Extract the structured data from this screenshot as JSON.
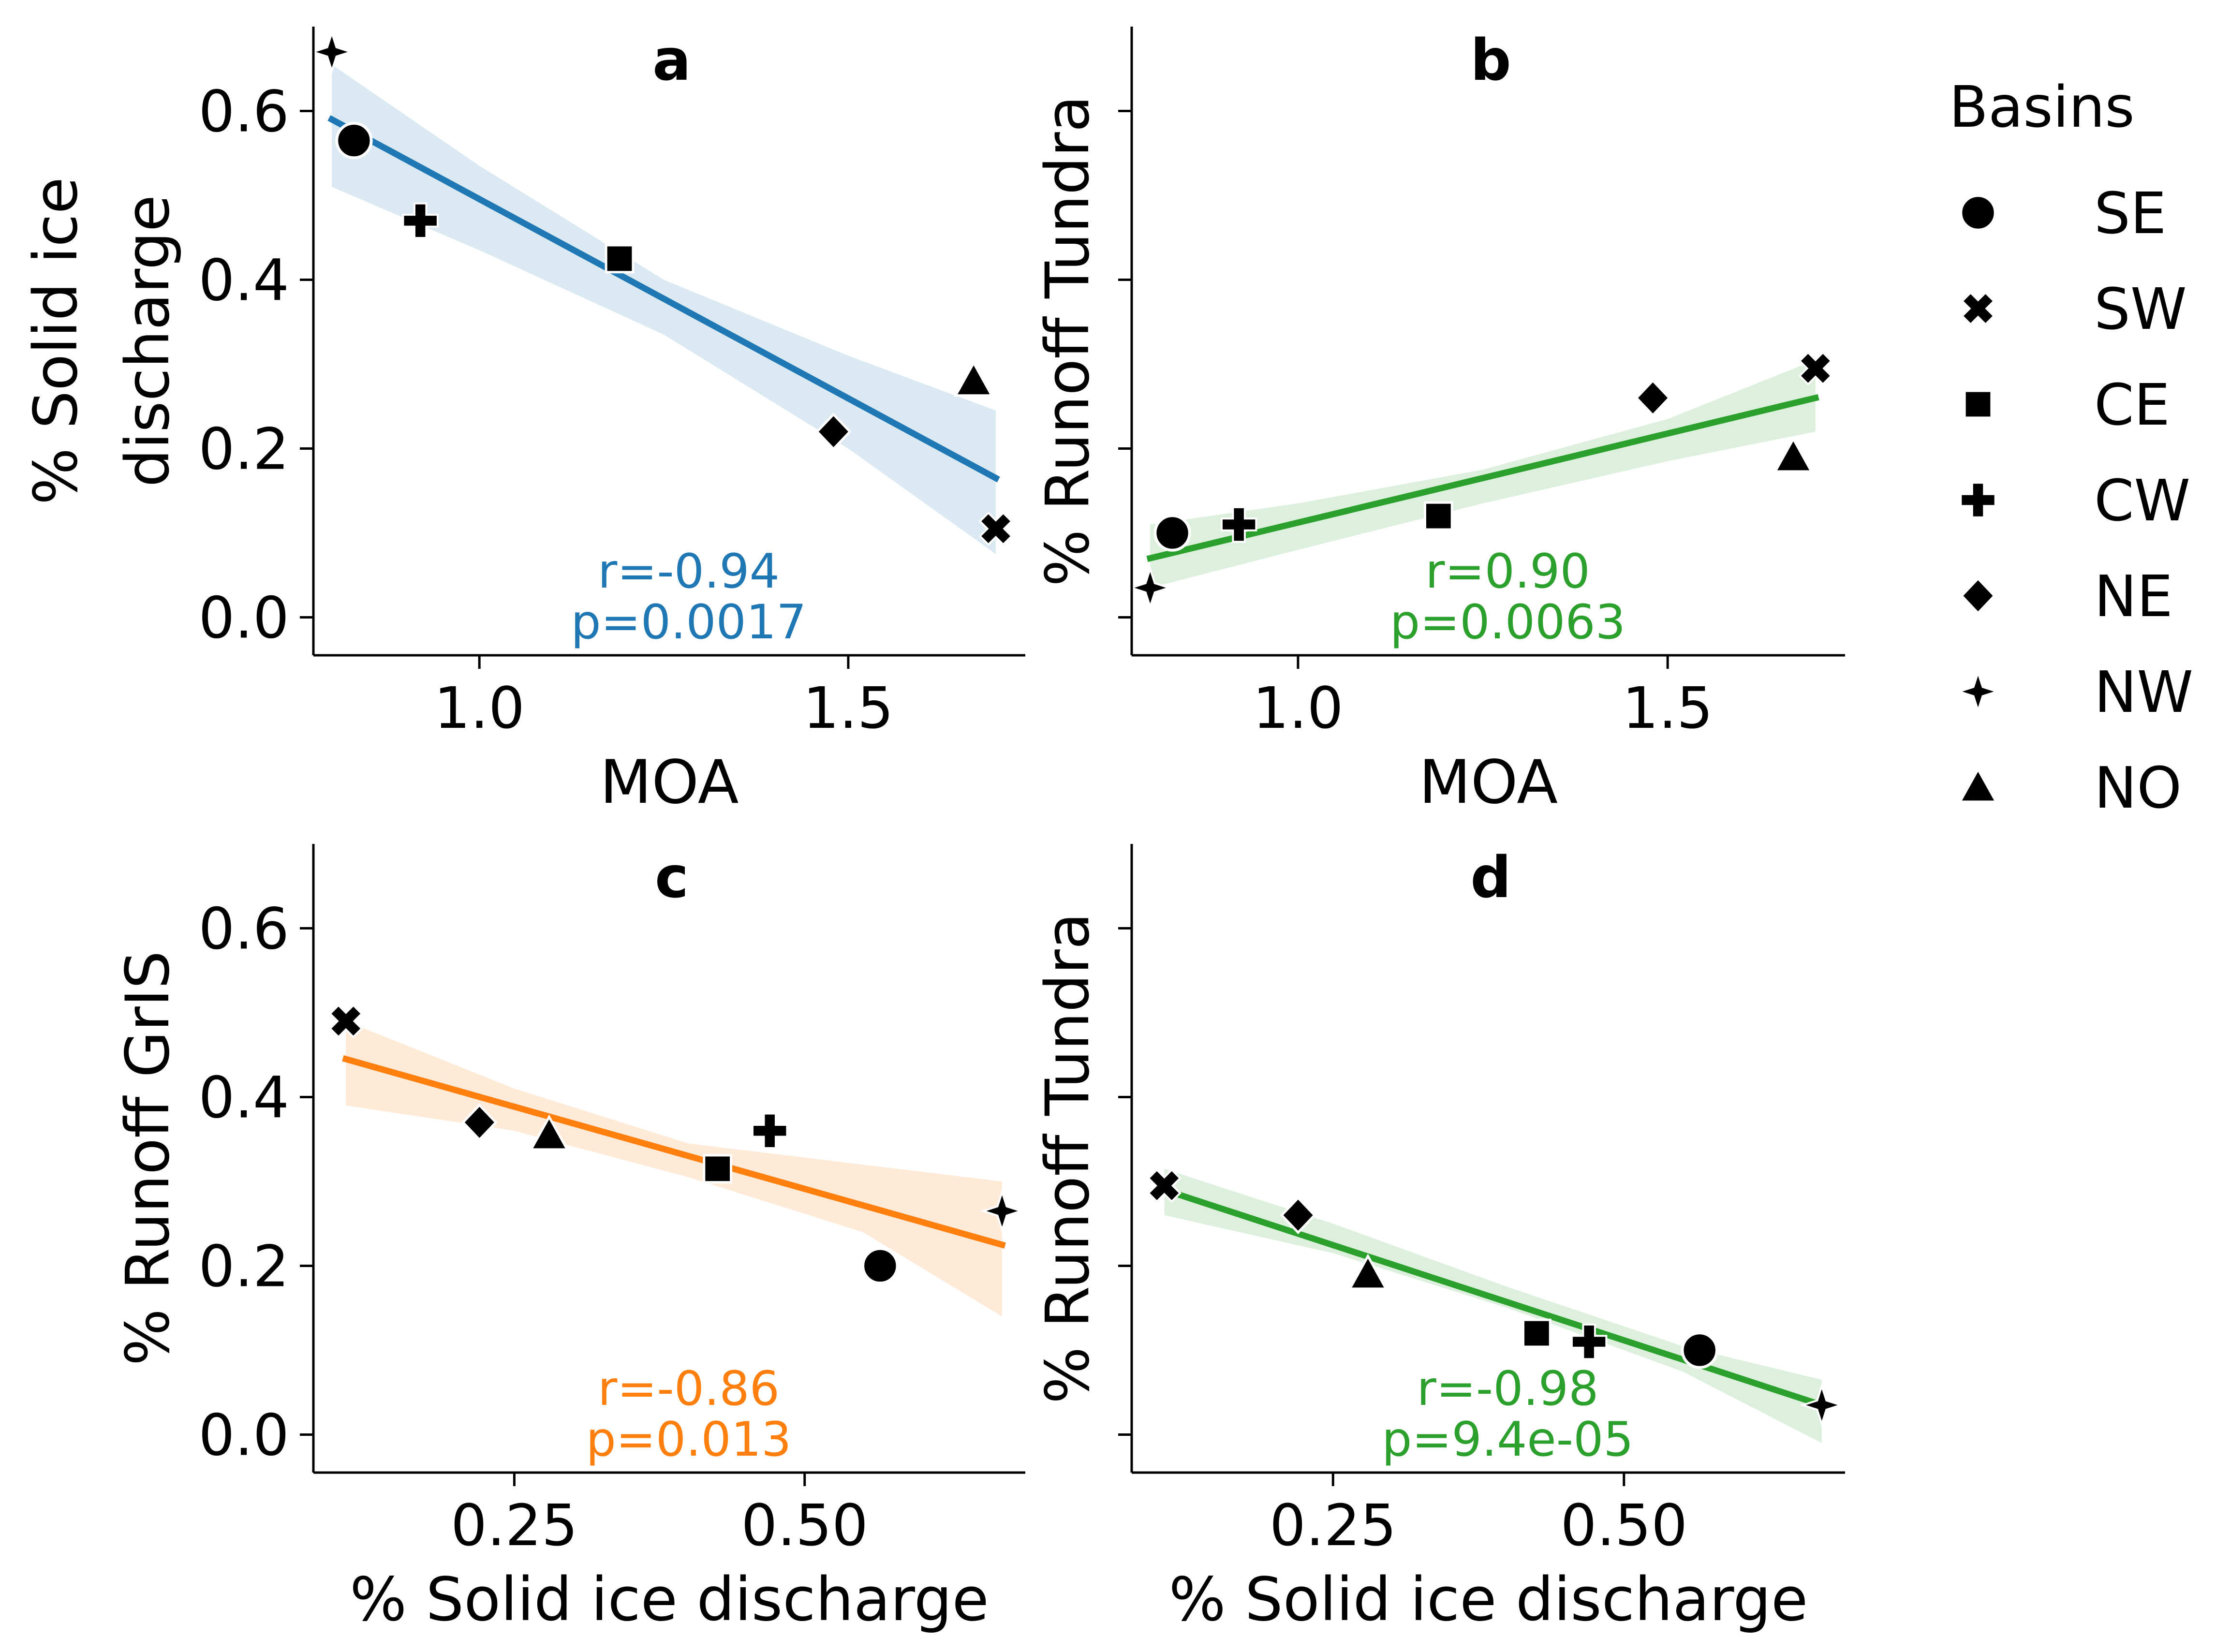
{
  "legend": {
    "title": "Basins",
    "entries": [
      {
        "label": "SE",
        "marker": "circle"
      },
      {
        "label": "SW",
        "marker": "x"
      },
      {
        "label": "CE",
        "marker": "square"
      },
      {
        "label": "CW",
        "marker": "plus"
      },
      {
        "label": "NE",
        "marker": "diamond"
      },
      {
        "label": "NW",
        "marker": "star4"
      },
      {
        "label": "NO",
        "marker": "triangle"
      }
    ]
  },
  "colors": {
    "a": "#1f77b4",
    "b": "#2ca02c",
    "c": "#ff7f0e",
    "d": "#2ca02c",
    "marker": "#000000"
  },
  "chart_data": [
    {
      "id": "a",
      "type": "scatter",
      "panel_label": "a",
      "xlabel": "MOA",
      "ylabel": [
        "% Solid ice",
        "discharge"
      ],
      "xlim": [
        0.775,
        1.74
      ],
      "ylim": [
        -0.045,
        0.7
      ],
      "xticks": [
        "1.0",
        "1.5"
      ],
      "yticks": [
        "0.0",
        "0.2",
        "0.4",
        "0.6"
      ],
      "show_xticklabels": true,
      "show_yticklabels": true,
      "points": [
        {
          "basin": "SE",
          "x": 0.83,
          "y": 0.565
        },
        {
          "basin": "SW",
          "x": 1.7,
          "y": 0.105
        },
        {
          "basin": "CE",
          "x": 1.19,
          "y": 0.425
        },
        {
          "basin": "CW",
          "x": 0.92,
          "y": 0.47
        },
        {
          "basin": "NE",
          "x": 1.48,
          "y": 0.22
        },
        {
          "basin": "NW",
          "x": 0.8,
          "y": 0.67
        },
        {
          "basin": "NO",
          "x": 1.67,
          "y": 0.28
        }
      ],
      "fit": {
        "x": [
          0.8,
          1.7
        ],
        "y": [
          0.59,
          0.165
        ]
      },
      "band_upper": [
        [
          0.8,
          0.655
        ],
        [
          1.0,
          0.535
        ],
        [
          1.25,
          0.4
        ],
        [
          1.5,
          0.31
        ],
        [
          1.7,
          0.245
        ]
      ],
      "band_lower": [
        [
          0.8,
          0.51
        ],
        [
          1.0,
          0.435
        ],
        [
          1.25,
          0.335
        ],
        [
          1.5,
          0.2
        ],
        [
          1.7,
          0.075
        ]
      ],
      "stats": {
        "r": "r=-0.94",
        "p": "p=0.0017"
      }
    },
    {
      "id": "b",
      "type": "scatter",
      "panel_label": "b",
      "xlabel": "MOA",
      "ylabel": [
        "% Runoff Tundra"
      ],
      "xlim": [
        0.775,
        1.74
      ],
      "ylim": [
        -0.045,
        0.7
      ],
      "xticks": [
        "1.0",
        "1.5"
      ],
      "yticks": [
        "0.0",
        "0.2",
        "0.4",
        "0.6"
      ],
      "show_xticklabels": true,
      "show_yticklabels": false,
      "points": [
        {
          "basin": "SE",
          "x": 0.83,
          "y": 0.1
        },
        {
          "basin": "SW",
          "x": 1.7,
          "y": 0.295
        },
        {
          "basin": "CE",
          "x": 1.19,
          "y": 0.12
        },
        {
          "basin": "CW",
          "x": 0.92,
          "y": 0.11
        },
        {
          "basin": "NE",
          "x": 1.48,
          "y": 0.26
        },
        {
          "basin": "NW",
          "x": 0.8,
          "y": 0.035
        },
        {
          "basin": "NO",
          "x": 1.67,
          "y": 0.19
        }
      ],
      "fit": {
        "x": [
          0.8,
          1.7
        ],
        "y": [
          0.07,
          0.26
        ]
      },
      "band_upper": [
        [
          0.8,
          0.11
        ],
        [
          1.0,
          0.135
        ],
        [
          1.25,
          0.175
        ],
        [
          1.5,
          0.235
        ],
        [
          1.7,
          0.305
        ]
      ],
      "band_lower": [
        [
          0.8,
          0.035
        ],
        [
          1.0,
          0.08
        ],
        [
          1.25,
          0.135
        ],
        [
          1.5,
          0.185
        ],
        [
          1.7,
          0.22
        ]
      ],
      "stats": {
        "r": "r=0.90",
        "p": "p=0.0063"
      }
    },
    {
      "id": "c",
      "type": "scatter",
      "panel_label": "c",
      "xlabel": "% Solid ice discharge",
      "ylabel": [
        "% Runoff GrIS"
      ],
      "xlim": [
        0.077,
        0.69
      ],
      "ylim": [
        -0.045,
        0.7
      ],
      "xticks": [
        "0.25",
        "0.50"
      ],
      "yticks": [
        "0.0",
        "0.2",
        "0.4",
        "0.6"
      ],
      "show_xticklabels": true,
      "show_yticklabels": true,
      "points": [
        {
          "basin": "SE",
          "x": 0.565,
          "y": 0.2
        },
        {
          "basin": "SW",
          "x": 0.105,
          "y": 0.49
        },
        {
          "basin": "CE",
          "x": 0.425,
          "y": 0.315
        },
        {
          "basin": "CW",
          "x": 0.47,
          "y": 0.36
        },
        {
          "basin": "NE",
          "x": 0.22,
          "y": 0.37
        },
        {
          "basin": "NW",
          "x": 0.67,
          "y": 0.265
        },
        {
          "basin": "NO",
          "x": 0.28,
          "y": 0.355
        }
      ],
      "fit": {
        "x": [
          0.105,
          0.67
        ],
        "y": [
          0.445,
          0.225
        ]
      },
      "band_upper": [
        [
          0.105,
          0.49
        ],
        [
          0.25,
          0.41
        ],
        [
          0.4,
          0.345
        ],
        [
          0.55,
          0.32
        ],
        [
          0.67,
          0.3
        ]
      ],
      "band_lower": [
        [
          0.105,
          0.39
        ],
        [
          0.25,
          0.36
        ],
        [
          0.4,
          0.305
        ],
        [
          0.55,
          0.24
        ],
        [
          0.67,
          0.14
        ]
      ],
      "stats": {
        "r": "r=-0.86",
        "p": "p=0.013"
      }
    },
    {
      "id": "d",
      "type": "scatter",
      "panel_label": "d",
      "xlabel": "% Solid ice discharge",
      "ylabel": [
        "% Runoff Tundra"
      ],
      "xlim": [
        0.077,
        0.69
      ],
      "ylim": [
        -0.045,
        0.7
      ],
      "xticks": [
        "0.25",
        "0.50"
      ],
      "yticks": [
        "0.0",
        "0.2",
        "0.4",
        "0.6"
      ],
      "show_xticklabels": true,
      "show_yticklabels": false,
      "points": [
        {
          "basin": "SE",
          "x": 0.565,
          "y": 0.1
        },
        {
          "basin": "SW",
          "x": 0.105,
          "y": 0.295
        },
        {
          "basin": "CE",
          "x": 0.425,
          "y": 0.12
        },
        {
          "basin": "CW",
          "x": 0.47,
          "y": 0.11
        },
        {
          "basin": "NE",
          "x": 0.22,
          "y": 0.26
        },
        {
          "basin": "NW",
          "x": 0.67,
          "y": 0.035
        },
        {
          "basin": "NO",
          "x": 0.28,
          "y": 0.19
        }
      ],
      "fit": {
        "x": [
          0.105,
          0.67
        ],
        "y": [
          0.29,
          0.035
        ]
      },
      "band_upper": [
        [
          0.105,
          0.315
        ],
        [
          0.25,
          0.25
        ],
        [
          0.4,
          0.175
        ],
        [
          0.55,
          0.105
        ],
        [
          0.67,
          0.065
        ]
      ],
      "band_lower": [
        [
          0.105,
          0.26
        ],
        [
          0.25,
          0.215
        ],
        [
          0.4,
          0.15
        ],
        [
          0.55,
          0.075
        ],
        [
          0.67,
          -0.01
        ]
      ],
      "stats": {
        "r": "r=-0.98",
        "p": "p=9.4e-05"
      }
    }
  ]
}
